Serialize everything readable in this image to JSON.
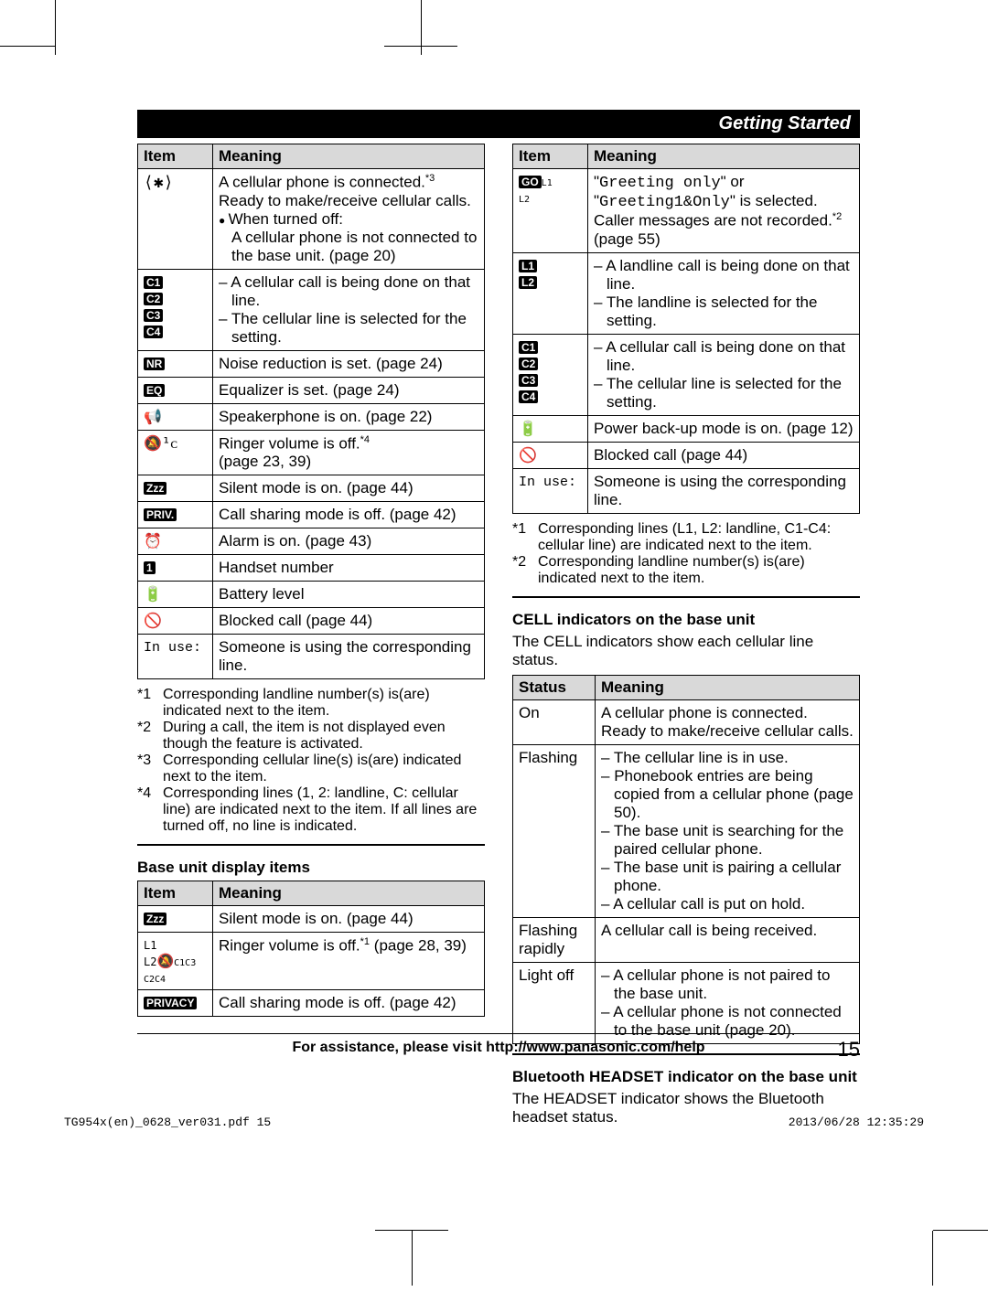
{
  "header": "Getting Started",
  "leftTable1": {
    "headers": [
      "Item",
      "Meaning"
    ],
    "rows": [
      {
        "iconHtml": "<span style='font-size:18px'>⟨✱⟩</span>",
        "meaningHtml": "A cellular phone is connected.<span class='sup'>*3</span><br>Ready to make/receive cellular calls.<ul class='dot'><li>When turned off:<br>A cellular phone is not connected to the base unit. (page 20)</li></ul>"
      },
      {
        "iconHtml": "<span class='badge'>C1</span><br><span class='badge'>C2</span><br><span class='badge'>C3</span><br><span class='badge'>C4</span>",
        "meaningHtml": "<ul class='dash'><li>A cellular call is being done on that line.</li><li>The cellular line is selected for the setting.</li></ul>"
      },
      {
        "iconHtml": "<span class='badge'>NR</span>",
        "meaningHtml": "Noise reduction is set. (page 24)"
      },
      {
        "iconHtml": "<span class='badge'>EQ</span>",
        "meaningHtml": "Equalizer is set. (page 24)"
      },
      {
        "iconHtml": "<span style='font-size:16px'>📢</span>",
        "meaningHtml": "Speakerphone is on. (page 22)"
      },
      {
        "iconHtml": "<span style='font-size:16px'>🔕¹ᴄ</span>",
        "meaningHtml": "Ringer volume is off.<span class='sup'>*4</span><br>(page 23, 39)"
      },
      {
        "iconHtml": "<span class='badge'>Zzz</span>",
        "meaningHtml": "Silent mode is on. (page 44)"
      },
      {
        "iconHtml": "<span class='badge'>PRIV.</span>",
        "meaningHtml": "Call sharing mode is off. (page 42)"
      },
      {
        "iconHtml": "<span style='font-size:16px'>⏰</span>",
        "meaningHtml": "Alarm is on. (page 43)"
      },
      {
        "iconHtml": "<span class='badge'>1</span>",
        "meaningHtml": "Handset number"
      },
      {
        "iconHtml": "<span style='font-size:16px'>🔋</span>",
        "meaningHtml": "Battery level"
      },
      {
        "iconHtml": "<span style='font-size:16px'>🚫</span>",
        "meaningHtml": "Blocked call (page 44)"
      },
      {
        "iconHtml": "<span class='mono'>In use:</span>",
        "meaningHtml": "Someone is using the corresponding line."
      }
    ]
  },
  "leftFootnotes": [
    {
      "num": "*1",
      "text": "Corresponding landline number(s) is(are) indicated next to the item."
    },
    {
      "num": "*2",
      "text": "During a call, the item is not displayed even though the feature is activated."
    },
    {
      "num": "*3",
      "text": "Corresponding cellular line(s) is(are) indicated next to the item."
    },
    {
      "num": "*4",
      "text": "Corresponding lines (1, 2: landline, C: cellular line) are indicated next to the item. If all lines are turned off, no line is indicated."
    }
  ],
  "baseUnitTitle": "Base unit display items",
  "leftTable2": {
    "headers": [
      "Item",
      "Meaning"
    ],
    "rows": [
      {
        "iconHtml": "<span class='badge'>Zzz</span>",
        "meaningHtml": "Silent mode is on. (page 44)"
      },
      {
        "iconHtml": "<span style='font-size:12px'>L1<br>L2</span>🔕<span style='font-size:10px'>C1C3<br>C2C4</span>",
        "meaningHtml": "Ringer volume is off.<span class='sup'>*1</span> (page 28, 39)"
      },
      {
        "iconHtml": "<span class='badge'>PRIVACY</span>",
        "meaningHtml": "Call sharing mode is off. (page 42)"
      }
    ]
  },
  "rightTable1": {
    "headers": [
      "Item",
      "Meaning"
    ],
    "rows": [
      {
        "iconHtml": "<span class='badge'>GO</span><span style='font-size:10px'>L1<br>L2</span>",
        "meaningHtml": "\"<span class='mono'>Greeting only</span>\" or \"<span class='mono'>Greeting1&Only</span>\" is selected. Caller messages are not recorded.<span class='sup'>*2</span> (page 55)"
      },
      {
        "iconHtml": "<span class='badge'>L1</span><br><span class='badge'>L2</span>",
        "meaningHtml": "<ul class='dash'><li>A landline call is being done on that line.</li><li>The landline is selected for the setting.</li></ul>"
      },
      {
        "iconHtml": "<span class='badge'>C1</span><br><span class='badge'>C2</span><br><span class='badge'>C3</span><br><span class='badge'>C4</span>",
        "meaningHtml": "<ul class='dash'><li>A cellular call is being done on that line.</li><li>The cellular line is selected for the setting.</li></ul>"
      },
      {
        "iconHtml": "<span style='font-size:16px'>🔋</span>",
        "meaningHtml": "Power back-up mode is on. (page 12)"
      },
      {
        "iconHtml": "<span style='font-size:16px'>🚫</span>",
        "meaningHtml": "Blocked call (page 44)"
      },
      {
        "iconHtml": "<span class='mono'>In use:</span>",
        "meaningHtml": "Someone is using the corresponding line."
      }
    ]
  },
  "rightFootnotes": [
    {
      "num": "*1",
      "text": "Corresponding lines (L1, L2: landline, C1-C4: cellular line) are indicated next to the item."
    },
    {
      "num": "*2",
      "text": "Corresponding landline number(s) is(are) indicated next to the item."
    }
  ],
  "cellTitle": "CELL indicators on the base unit",
  "cellText": "The CELL indicators show each cellular line status.",
  "cellTable": {
    "headers": [
      "Status",
      "Meaning"
    ],
    "rows": [
      {
        "status": "On",
        "meaningHtml": "A cellular phone is connected. Ready to make/receive cellular calls."
      },
      {
        "status": "Flashing",
        "meaningHtml": "<ul class='dash'><li>The cellular line is in use.</li><li>Phonebook entries are being copied from a cellular phone (page 50).</li><li>The base unit is searching for the paired cellular phone.</li><li>The base unit is pairing a cellular phone.</li><li>A cellular call is put on hold.</li></ul>"
      },
      {
        "status": "Flashing rapidly",
        "meaningHtml": "A cellular call is being received."
      },
      {
        "status": "Light off",
        "meaningHtml": "<ul class='dash'><li>A cellular phone is not paired to the base unit.</li><li>A cellular phone is not connected to the base unit (page 20).</li></ul>"
      }
    ]
  },
  "btTitle": "Bluetooth HEADSET indicator on the base unit",
  "btText": "The HEADSET indicator shows the Bluetooth headset status.",
  "footerText": "For assistance, please visit http://www.panasonic.com/help",
  "pageNum": "15",
  "printLeft": "TG954x(en)_0628_ver031.pdf   15",
  "printRight": "2013/06/28   12:35:29"
}
